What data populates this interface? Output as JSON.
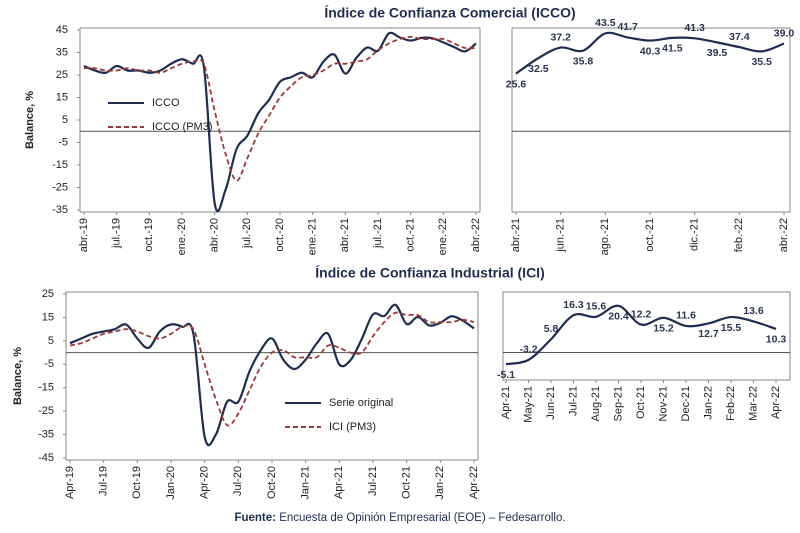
{
  "chart_data": [
    {
      "type": "line",
      "title": "Índice de Confianza Comercial (ICCO)",
      "y_label": "Balance, %",
      "categories": [
        "abr.-19",
        null,
        null,
        "jul.-19",
        null,
        null,
        "oct.-19",
        null,
        null,
        "ene.-20",
        null,
        null,
        "abr.-20",
        null,
        null,
        "jul.-20",
        null,
        null,
        "oct.-20",
        null,
        null,
        "ene.-21",
        null,
        null,
        "abr.-21",
        null,
        null,
        "jul.-21",
        null,
        null,
        "oct.-21",
        null,
        null,
        "ene.-22",
        null,
        null,
        "abr.-22"
      ],
      "series": [
        {
          "name": "ICCO",
          "color": "#1f2d4e",
          "style": "solid",
          "values": [
            29,
            27,
            26,
            29,
            27,
            27,
            26,
            27,
            30,
            32,
            30,
            29,
            -32,
            -26,
            -8,
            -2,
            8,
            14,
            22,
            24,
            26,
            24,
            31,
            34,
            25.6,
            32.5,
            37.2,
            35.8,
            43.5,
            41.7,
            40.3,
            41.5,
            41.3,
            39.5,
            37.4,
            35.5,
            39.0
          ]
        },
        {
          "name": "ICCO (PM3)",
          "color": "#9b3a3a",
          "style": "dashed",
          "values": [
            28,
            28,
            27,
            27,
            28,
            27,
            27,
            26,
            28,
            30,
            31,
            30,
            9,
            -10,
            -22,
            -12,
            -1,
            7,
            15,
            20,
            24,
            25,
            27,
            30,
            30,
            31,
            32,
            36,
            39,
            41,
            42,
            41,
            41,
            41,
            39,
            37,
            37
          ]
        }
      ],
      "ylim": [
        -35,
        45
      ],
      "yticks": [
        -35,
        -25,
        -15,
        -5,
        5,
        15,
        25,
        35,
        45
      ],
      "zero_line": true
    },
    {
      "type": "line",
      "categories": [
        "abr.-21",
        null,
        "jun.-21",
        null,
        "ago.-21",
        null,
        "oct.-21",
        null,
        "dic.-21",
        null,
        "feb.-22",
        null,
        "abr.-22"
      ],
      "series": [
        {
          "name": "ICCO",
          "color": "#1f2d4e",
          "style": "solid",
          "values": [
            25.6,
            32.5,
            37.2,
            35.8,
            43.5,
            41.7,
            40.3,
            41.5,
            41.3,
            39.5,
            37.4,
            35.5,
            39.0
          ],
          "value_labels": [
            "25.6",
            "32.5",
            "37.2",
            "35.8",
            "43.5",
            "41.7",
            "40.3",
            "41.5",
            "41.3",
            "39.5",
            "37.4",
            "35.5",
            "39.0"
          ]
        }
      ],
      "ylim": [
        -35,
        45
      ],
      "zero_line": true
    },
    {
      "type": "line",
      "title": "Índice de Confianza Industrial (ICI)",
      "y_label": "Balance, %",
      "categories": [
        "Apr-19",
        null,
        null,
        "Jul-19",
        null,
        null,
        "Oct-19",
        null,
        null,
        "Jan-20",
        null,
        null,
        "Apr-20",
        null,
        null,
        "Jul-20",
        null,
        null,
        "Oct-20",
        null,
        null,
        "Jan-21",
        null,
        null,
        "Apr-21",
        null,
        null,
        "Jul-21",
        null,
        null,
        "Oct-21",
        null,
        null,
        "Jan-22",
        null,
        null,
        "Apr-22"
      ],
      "series": [
        {
          "name": "Serie original",
          "color": "#1f2d4e",
          "style": "solid",
          "values": [
            4,
            6,
            8,
            9,
            10,
            12,
            6,
            2,
            9,
            12,
            11,
            8,
            -36,
            -35,
            -21,
            -21,
            -8,
            1,
            6,
            -3,
            -7,
            -3,
            4,
            8,
            -5.1,
            -3.2,
            5.8,
            16.3,
            15.6,
            20.4,
            12.2,
            15.2,
            11.6,
            12.7,
            15.5,
            13.6,
            10.3
          ]
        },
        {
          "name": "ICI (PM3)",
          "color": "#9b3a3a",
          "style": "dashed",
          "values": [
            3,
            4,
            6,
            8,
            9,
            10,
            9,
            7,
            6,
            8,
            11,
            10,
            -5,
            -20,
            -31,
            -26,
            -16,
            -6,
            0,
            1,
            -2,
            -2,
            -2,
            3,
            2,
            0,
            0,
            7,
            13,
            17,
            16,
            16,
            13,
            13,
            13,
            14,
            13
          ]
        }
      ],
      "ylim": [
        -45,
        25
      ],
      "yticks": [
        -45,
        -35,
        -25,
        -15,
        -5,
        5,
        15,
        25
      ],
      "zero_line": true
    },
    {
      "type": "line",
      "categories": [
        "Apr-21",
        "May-21",
        "Jun-21",
        "Jul-21",
        "Aug-21",
        "Sep-21",
        "Oct-21",
        "Nov-21",
        "Dec-21",
        "Jan-22",
        "Feb-22",
        "Mar-22",
        "Apr-22"
      ],
      "series": [
        {
          "name": "Serie original",
          "color": "#1f2d4e",
          "style": "solid",
          "values": [
            -5.1,
            -3.2,
            5.8,
            16.3,
            15.6,
            20.4,
            12.2,
            15.2,
            11.6,
            12.7,
            15.5,
            13.6,
            10.3
          ],
          "value_labels": [
            "-5.1",
            "-3.2",
            "5.8",
            "16.3",
            "15.6",
            "20.4",
            "12.2",
            "15.2",
            "11.6",
            "12.7",
            "15.5",
            "13.6",
            "10.3"
          ]
        }
      ],
      "ylim": [
        -12,
        26
      ],
      "zero_line": true
    }
  ],
  "footer": {
    "label": "Fuente:",
    "text": "Encuesta de Opinión Empresarial (EOE) – Fedesarrollo."
  }
}
